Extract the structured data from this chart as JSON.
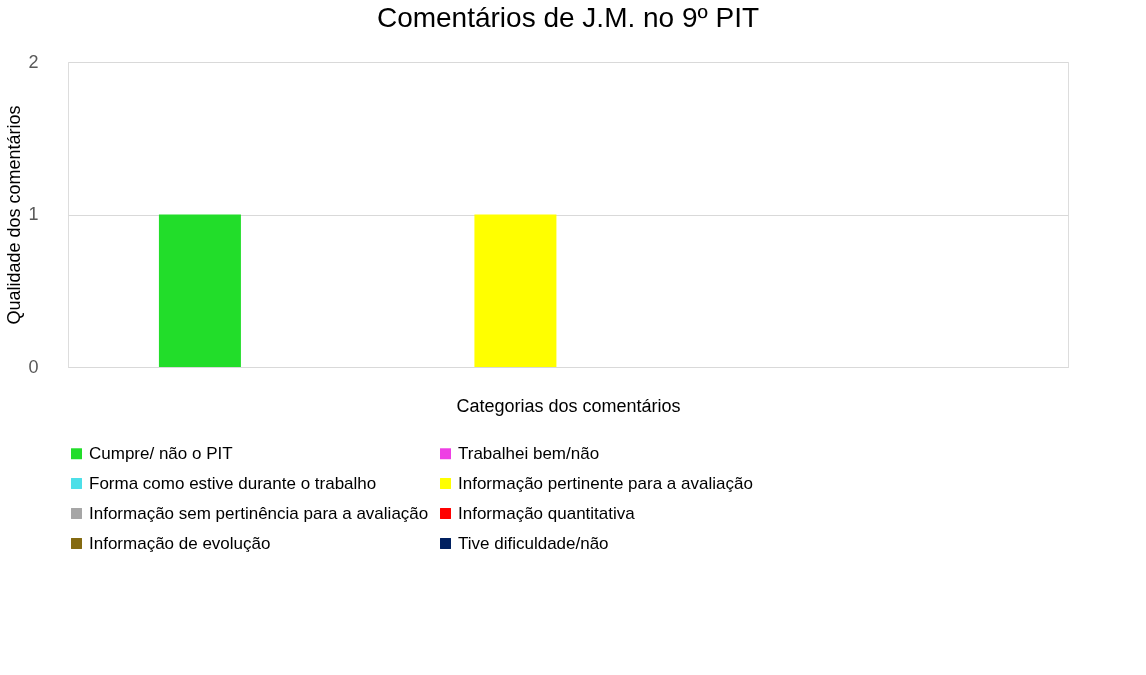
{
  "chart_data": {
    "type": "bar",
    "title": "Comentários de J.M. no 9º PIT",
    "xlabel": "Categorias dos comentários",
    "ylabel": "Qualidade dos comentários",
    "categories": [
      null
    ],
    "series": [
      {
        "name": "Cumpre/ não o PIT",
        "color": "#22dd2a",
        "values": [
          1
        ]
      },
      {
        "name": "Trabalhei bem/não",
        "color": "#ee3fe4",
        "values": [
          0
        ]
      },
      {
        "name": "Forma como estive durante o trabalho",
        "color": "#4ddfe8",
        "values": [
          0
        ]
      },
      {
        "name": "Informação pertinente para a avaliação",
        "color": "#ffff00",
        "values": [
          1
        ]
      },
      {
        "name": "Informação sem pertinência para a avaliação",
        "color": "#a6a6a6",
        "values": [
          0
        ]
      },
      {
        "name": "Informação quantitativa",
        "color": "#ff0000",
        "values": [
          0
        ]
      },
      {
        "name": "Informação de evolução",
        "color": "#846a11",
        "values": [
          0
        ]
      },
      {
        "name": "Tive dificuldade/não",
        "color": "#002060",
        "values": [
          0
        ]
      }
    ],
    "ylim": [
      0,
      2
    ],
    "yticks": [
      0,
      1,
      2
    ],
    "grid": "y",
    "legend": "bottom"
  }
}
